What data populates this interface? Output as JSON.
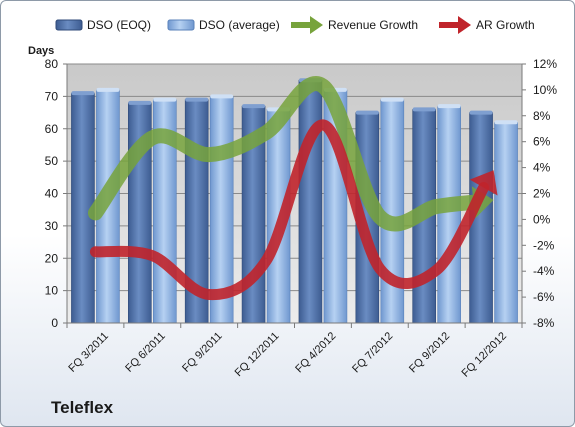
{
  "company": "Teleflex",
  "chart_data": {
    "type": "bar",
    "title": "",
    "ylabel": "Days",
    "ylim": [
      0,
      80
    ],
    "yticks": [
      0,
      10,
      20,
      30,
      40,
      50,
      60,
      70,
      80
    ],
    "y2lim": [
      -8,
      12
    ],
    "y2ticks": [
      "-8%",
      "-6%",
      "-4%",
      "-2%",
      "0%",
      "2%",
      "4%",
      "6%",
      "8%",
      "10%",
      "12%"
    ],
    "categories": [
      "FQ 3/2011",
      "FQ 6/2011",
      "FQ 9/2011",
      "FQ 12/2011",
      "FQ 4/2012",
      "FQ 7/2012",
      "FQ 9/2012",
      "FQ 12/2012"
    ],
    "series": [
      {
        "name": "DSO (EOQ)",
        "type": "bar",
        "axis": "left",
        "color": "#4f6fa5",
        "values": [
          71,
          68,
          69,
          67,
          75,
          65,
          66,
          65
        ]
      },
      {
        "name": "DSO (average)",
        "type": "bar",
        "axis": "left",
        "color": "#8fb4e3",
        "values": [
          72,
          69,
          70,
          66,
          72,
          69,
          67,
          62
        ]
      },
      {
        "name": "Revenue Growth",
        "type": "line",
        "axis": "right",
        "color": "#77a33c",
        "values": [
          0.5,
          6.3,
          5.0,
          6.7,
          10.3,
          0.2,
          1.0,
          1.5
        ]
      },
      {
        "name": "AR Growth",
        "type": "line",
        "axis": "right",
        "color": "#c0242b",
        "values": [
          -2.5,
          -2.8,
          -5.8,
          -3.2,
          7.3,
          -3.8,
          -3.9,
          3.8
        ]
      }
    ],
    "legend": "top",
    "grid": true
  }
}
